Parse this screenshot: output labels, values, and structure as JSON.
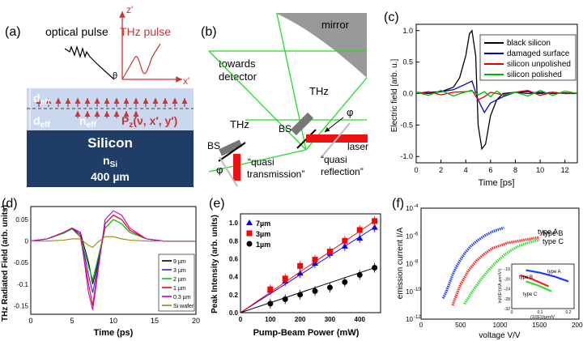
{
  "panels": {
    "a": {
      "letter": "(a)",
      "optical_pulse": "optical pulse",
      "thz_pulse": "THz pulse",
      "z_axis": "z′",
      "x_axis": "x′",
      "theta": "θ",
      "d_eff_top": "d",
      "d_eff_bottom": "d",
      "eff_sub": "eff",
      "n_eff": "n",
      "pz": "P",
      "pz_sub": "z",
      "pz_args": "(ν, x′, y′)",
      "silicon": "Silicon",
      "n_si": "n",
      "n_si_sub": "Si",
      "thickness": "400 µm"
    },
    "b": {
      "letter": "(b)",
      "mirror": "mirror",
      "towards": "towards",
      "detector": "detector",
      "thz_center": "THz",
      "thz_left": "THz",
      "bs_left": "BS",
      "bs_right": "BS",
      "phi_left": "φ",
      "phi_right": "φ",
      "laser": "laser",
      "quasi_t1": "“quasi",
      "quasi_t2": "transmission”",
      "quasi_r1": "“quasi",
      "quasi_r2": "reflection”"
    },
    "c": {
      "letter": "(c)",
      "ylabel": "Electric field [arb. u.]",
      "xlabel": "Time [ps]",
      "yticks": [
        "1.0",
        "0.5",
        "0.0",
        "-0.5",
        "-1.0"
      ],
      "xticks": [
        "0",
        "2",
        "4",
        "6",
        "8",
        "10",
        "12"
      ]
    },
    "d": {
      "letter": "(d)",
      "ylabel": "THz Radiated Field (arb. units)",
      "xlabel": "Time (ps)",
      "yticks": [
        "0.05",
        "0",
        "-0.05",
        "-0.1",
        "-0.15"
      ],
      "xticks": [
        "0",
        "5",
        "10",
        "15",
        "20"
      ]
    },
    "e": {
      "letter": "(e)",
      "ylabel": "Peak Intensity (arb. units)",
      "xlabel": "Pump-Beam Power (mW)",
      "yticks": [
        "0.0",
        "0.2",
        "0.4",
        "0.6",
        "0.8",
        "1.0"
      ],
      "xticks": [
        "0",
        "100",
        "200",
        "300",
        "400"
      ]
    },
    "f": {
      "letter": "(f)",
      "ylabel": "emission current I/A",
      "xlabel": "voltage V/V",
      "yticks": [
        "10",
        "10",
        "10",
        "10",
        "10"
      ],
      "yexp": [
        "-4",
        "-6",
        "-8",
        "-10",
        "-12"
      ],
      "xticks": [
        "0",
        "500",
        "1000",
        "1500",
        "2000"
      ],
      "type_a": "type A",
      "type_b": "type B",
      "type_c": "type C",
      "inset_ylabel": "ln(I/(E²))/(A µm²/V²)",
      "inset_xlabel": "(1/(E))/µm/V",
      "inset_yticks": [
        "-16",
        "-20",
        "-24",
        "-28",
        "-32"
      ],
      "inset_xticks": [
        "0",
        "0.1",
        "0.2"
      ],
      "inset_a": "type A",
      "inset_b": "type B",
      "inset_c": "type C"
    }
  },
  "chart_data": [
    {
      "type": "line",
      "panel": "c",
      "xlabel": "Time [ps]",
      "ylabel": "Electric field [arb. u.]",
      "xlim": [
        0,
        13
      ],
      "ylim": [
        -1.1,
        1.1
      ],
      "legend": "top-right",
      "series": [
        {
          "name": "black silicon",
          "color": "#000000",
          "x": [
            0,
            1,
            2,
            3,
            3.5,
            4,
            4.3,
            4.5,
            4.8,
            5,
            5.3,
            5.6,
            6,
            6.5,
            7,
            8,
            9,
            10,
            11,
            12,
            13
          ],
          "y": [
            0.02,
            0,
            0.03,
            0.1,
            0.25,
            0.6,
            0.95,
            1.0,
            0.6,
            -0.5,
            -0.88,
            -0.8,
            -0.35,
            -0.1,
            0,
            0.02,
            0,
            0.02,
            0,
            0.01,
            0
          ]
        },
        {
          "name": "damaged surface",
          "color": "#0000cc",
          "x": [
            0,
            1,
            2,
            3,
            4,
            4.5,
            5,
            5.5,
            6,
            7,
            8,
            9,
            10,
            11,
            12,
            13
          ],
          "y": [
            0,
            0.02,
            0.03,
            0.06,
            0.15,
            0.2,
            -0.1,
            -0.3,
            -0.15,
            -0.05,
            0.02,
            0.03,
            0,
            0.02,
            0,
            0
          ]
        },
        {
          "name": "silicon unpolished",
          "color": "#dd0000",
          "x": [
            0,
            1,
            2,
            3,
            4,
            4.5,
            5,
            5.5,
            6,
            7,
            8,
            9,
            10,
            11,
            12,
            13
          ],
          "y": [
            0,
            0.03,
            -0.02,
            0.02,
            0.03,
            0.05,
            -0.1,
            -0.05,
            0.02,
            -0.02,
            0.02,
            0.05,
            -0.03,
            0.02,
            0,
            0.01
          ]
        },
        {
          "name": "silicon polished",
          "color": "#00bb00",
          "x": [
            0,
            1,
            2,
            3,
            4,
            4.5,
            5,
            5.5,
            6,
            6.5,
            7,
            8,
            9,
            10,
            11,
            12,
            13
          ],
          "y": [
            0.02,
            -0.03,
            0.05,
            -0.04,
            0.03,
            0.04,
            -0.02,
            0.03,
            -0.05,
            0.04,
            -0.03,
            0.02,
            -0.04,
            0.05,
            -0.03,
            0.04,
            0
          ]
        }
      ]
    },
    {
      "type": "line",
      "panel": "d",
      "xlabel": "Time (ps)",
      "ylabel": "THz Radiated Field (arb. units)",
      "xlim": [
        0,
        20
      ],
      "ylim": [
        -0.17,
        0.08
      ],
      "legend": "bottom-right",
      "series": [
        {
          "name": "9 µm",
          "color": "#000000",
          "x": [
            0,
            2,
            4,
            5,
            6,
            7,
            7.5,
            8,
            9,
            10,
            11,
            12,
            14,
            16,
            18,
            20
          ],
          "y": [
            0,
            0.005,
            0.02,
            0.03,
            0.02,
            -0.05,
            -0.1,
            -0.06,
            0.03,
            0.05,
            0.04,
            0.02,
            0.005,
            0,
            0,
            0
          ]
        },
        {
          "name": "3 µm",
          "color": "#2222ff",
          "x": [
            0,
            2,
            4,
            5,
            6,
            7,
            7.5,
            8,
            9,
            10,
            11,
            12,
            14,
            16,
            18,
            20
          ],
          "y": [
            0,
            0.005,
            0.02,
            0.03,
            0.015,
            -0.08,
            -0.12,
            -0.07,
            0.04,
            0.06,
            0.05,
            0.025,
            0.005,
            0,
            0,
            0
          ]
        },
        {
          "name": "2 µm",
          "color": "#00cc00",
          "x": [
            0,
            2,
            4,
            5,
            6,
            7,
            7.5,
            8,
            9,
            10,
            11,
            12,
            14,
            16,
            18,
            20
          ],
          "y": [
            0,
            0.005,
            0.018,
            0.028,
            0.01,
            -0.06,
            -0.09,
            -0.05,
            0.03,
            0.05,
            0.04,
            0.02,
            0.005,
            0,
            0,
            0
          ]
        },
        {
          "name": "1 µm",
          "color": "#ff0000",
          "x": [
            0,
            2,
            4,
            5,
            6,
            7,
            7.5,
            8,
            9,
            10,
            11,
            12,
            14,
            16,
            18,
            20
          ],
          "y": [
            0,
            0.005,
            0.02,
            0.03,
            0.01,
            -0.1,
            -0.15,
            -0.08,
            0.04,
            0.06,
            0.05,
            0.025,
            0.005,
            0,
            0,
            0
          ]
        },
        {
          "name": "0.3 µm",
          "color": "#cc00cc",
          "x": [
            0,
            2,
            4,
            5,
            6,
            7,
            7.5,
            8,
            9,
            10,
            11,
            12,
            14,
            16,
            18,
            20
          ],
          "y": [
            0,
            0.005,
            0.02,
            0.03,
            0.02,
            -0.12,
            -0.16,
            -0.09,
            0.05,
            0.07,
            0.06,
            0.03,
            0.005,
            0,
            0,
            0
          ]
        },
        {
          "name": "Si wafer",
          "color": "#998800",
          "x": [
            0,
            2,
            4,
            5,
            6,
            7,
            7.5,
            8,
            9,
            10,
            11,
            12,
            14,
            16,
            18,
            20
          ],
          "y": [
            0,
            0,
            0.002,
            0.005,
            0.005,
            -0.01,
            -0.015,
            -0.005,
            0.01,
            0.01,
            0.005,
            0.002,
            0,
            0,
            0,
            0
          ]
        }
      ]
    },
    {
      "type": "scatter",
      "panel": "e",
      "xlabel": "Pump-Beam Power (mW)",
      "ylabel": "Peak Intensity (arb. units)",
      "xlim": [
        0,
        470
      ],
      "ylim": [
        0,
        1.1
      ],
      "legend": "top-left",
      "series": [
        {
          "name": "7µm",
          "color": "#0000ff",
          "marker": "triangle",
          "x": [
            100,
            150,
            200,
            250,
            300,
            350,
            400,
            450
          ],
          "y": [
            0.25,
            0.35,
            0.44,
            0.55,
            0.66,
            0.74,
            0.83,
            0.95
          ]
        },
        {
          "name": "3µm",
          "color": "#ff0000",
          "marker": "square",
          "x": [
            100,
            150,
            200,
            250,
            300,
            350,
            400,
            450
          ],
          "y": [
            0.26,
            0.38,
            0.52,
            0.59,
            0.68,
            0.8,
            0.92,
            1.02
          ]
        },
        {
          "name": "1µm",
          "color": "#000000",
          "marker": "circle",
          "x": [
            100,
            150,
            200,
            250,
            300,
            350,
            400,
            450
          ],
          "y": [
            0.1,
            0.15,
            0.2,
            0.24,
            0.28,
            0.34,
            0.42,
            0.5
          ]
        }
      ]
    },
    {
      "type": "scatter",
      "panel": "f",
      "xlabel": "voltage V/V",
      "ylabel": "emission current I/A",
      "xlim": [
        0,
        2000
      ],
      "ylim_log10": [
        -12,
        -4
      ],
      "series": [
        {
          "name": "type A",
          "color": "#1e3cff",
          "x": [
            280,
            320,
            360,
            400,
            450,
            500,
            560,
            620,
            700,
            800,
            900,
            1000,
            1050
          ],
          "y_log10": [
            -10.5,
            -10,
            -9.4,
            -8.8,
            -8.2,
            -7.7,
            -7.2,
            -6.8,
            -6.4,
            -6.0,
            -5.7,
            -5.5,
            -5.4
          ]
        },
        {
          "name": "type B",
          "color": "#ff2020",
          "x": [
            400,
            450,
            500,
            600,
            700,
            800,
            900,
            1000,
            1100,
            1200,
            1300,
            1400,
            1500
          ],
          "y_log10": [
            -11.0,
            -10.2,
            -9.5,
            -8.5,
            -7.8,
            -7.3,
            -6.9,
            -6.7,
            -6.5,
            -6.4,
            -6.3,
            -6.2,
            -6.1
          ]
        },
        {
          "name": "type C",
          "color": "#30dd30",
          "x": [
            550,
            650,
            750,
            850,
            950,
            1050,
            1150,
            1250,
            1350,
            1450,
            1500
          ],
          "y_log10": [
            -10.9,
            -10.0,
            -9.2,
            -8.5,
            -7.9,
            -7.4,
            -7.0,
            -6.7,
            -6.5,
            -6.35,
            -6.3
          ]
        }
      ]
    }
  ]
}
